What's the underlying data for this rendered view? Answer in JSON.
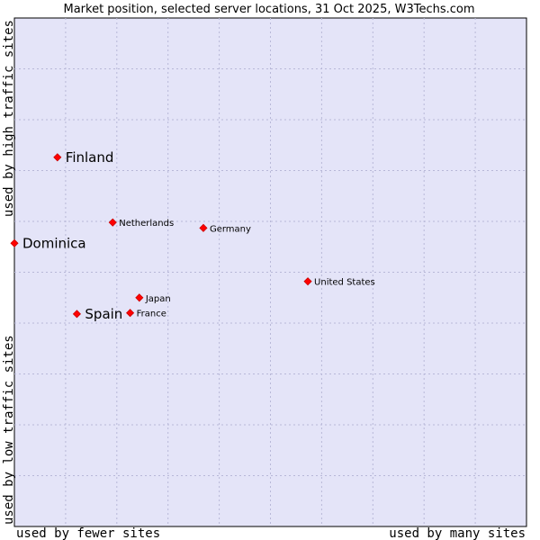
{
  "chart_data": {
    "type": "scatter",
    "title": "Market position, selected server locations, 31 Oct 2025, W3Techs.com",
    "xlabel_left": "used by fewer sites",
    "xlabel_right": "used by many sites",
    "ylabel_bottom": "used by low traffic sites",
    "ylabel_top": "used by high traffic sites",
    "xlim": [
      0,
      100
    ],
    "ylim": [
      0,
      100
    ],
    "grid": true,
    "colors": {
      "plot_background": "#e4e4f8",
      "grid": "#b8b8d8",
      "point": "#ff0000",
      "point_outline": "#cc0000"
    },
    "points": [
      {
        "name": "Finland",
        "x": 8.4,
        "y": 72.6,
        "emphasis": true
      },
      {
        "name": "Dominica",
        "x": 0.0,
        "y": 55.7,
        "emphasis": true
      },
      {
        "name": "Spain",
        "x": 12.2,
        "y": 41.8,
        "emphasis": true
      },
      {
        "name": "Netherlands",
        "x": 19.2,
        "y": 59.8,
        "emphasis": false
      },
      {
        "name": "Germany",
        "x": 36.9,
        "y": 58.7,
        "emphasis": false
      },
      {
        "name": "United States",
        "x": 57.3,
        "y": 48.2,
        "emphasis": false
      },
      {
        "name": "Japan",
        "x": 24.4,
        "y": 45.0,
        "emphasis": false
      },
      {
        "name": "France",
        "x": 22.6,
        "y": 42.0,
        "emphasis": false
      }
    ]
  }
}
